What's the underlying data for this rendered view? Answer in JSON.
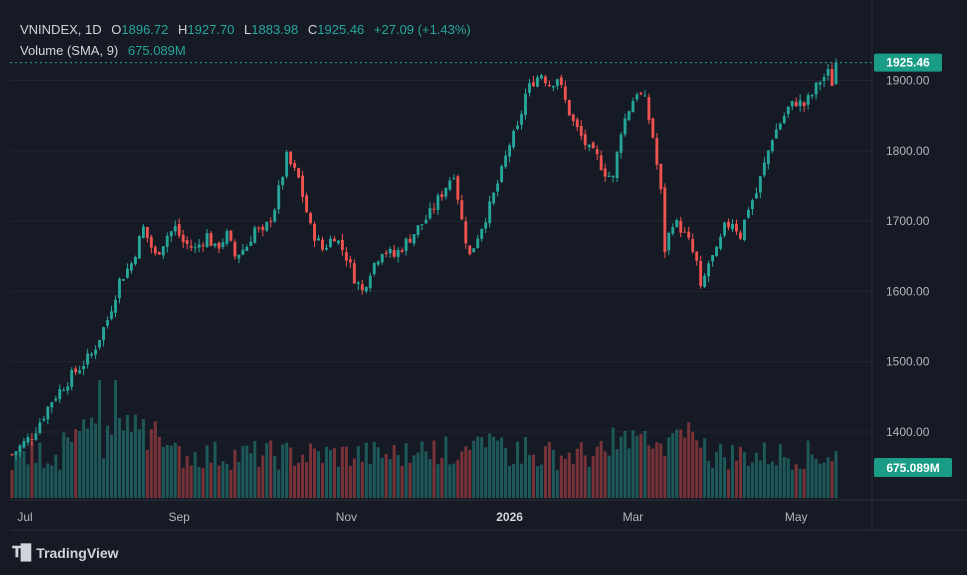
{
  "legend": {
    "symbol": "VNINDEX, 1D",
    "open_label": "O",
    "open": "1896.72",
    "high_label": "H",
    "high": "1927.70",
    "low_label": "L",
    "low": "1883.98",
    "close_label": "C",
    "close": "1925.46",
    "change": "+27.09 (+1.43%)",
    "volume_label": "Volume (SMA, 9)",
    "volume_value": "675.089M"
  },
  "footer": {
    "brand": "TradingView"
  },
  "colors": {
    "background": "#161a25",
    "up": "#26a69a",
    "down": "#ef5350",
    "grid": "#232632",
    "text": "#b2b5be",
    "last_price_tag": "#1a9c86"
  },
  "chart_data": {
    "type": "candlestick",
    "symbol": "VNINDEX",
    "interval": "1D",
    "y_ticks": [
      "1400.00",
      "1500.00",
      "1600.00",
      "1700.00",
      "1800.00",
      "1900.00"
    ],
    "x_ticks": [
      "Jul",
      "Sep",
      "Nov",
      "2026",
      "Mar",
      "May"
    ],
    "last_price_label": "1925.46",
    "last_volume_label": "675.089M",
    "ylim": [
      1355,
      1950
    ],
    "anchors": [
      [
        0,
        1368
      ],
      [
        5,
        1395
      ],
      [
        10,
        1445
      ],
      [
        15,
        1480
      ],
      [
        20,
        1510
      ],
      [
        24,
        1560
      ],
      [
        27,
        1615
      ],
      [
        30,
        1640
      ],
      [
        33,
        1690
      ],
      [
        36,
        1650
      ],
      [
        39,
        1680
      ],
      [
        41,
        1690
      ],
      [
        43,
        1670
      ],
      [
        46,
        1660
      ],
      [
        49,
        1680
      ],
      [
        51,
        1660
      ],
      [
        54,
        1680
      ],
      [
        56,
        1650
      ],
      [
        59,
        1665
      ],
      [
        61,
        1690
      ],
      [
        63,
        1680
      ],
      [
        66,
        1720
      ],
      [
        69,
        1790
      ],
      [
        72,
        1760
      ],
      [
        75,
        1690
      ],
      [
        78,
        1660
      ],
      [
        81,
        1680
      ],
      [
        84,
        1650
      ],
      [
        86,
        1620
      ],
      [
        88,
        1600
      ],
      [
        90,
        1630
      ],
      [
        93,
        1660
      ],
      [
        96,
        1650
      ],
      [
        99,
        1670
      ],
      [
        102,
        1690
      ],
      [
        105,
        1710
      ],
      [
        108,
        1740
      ],
      [
        111,
        1770
      ],
      [
        113,
        1700
      ],
      [
        115,
        1650
      ],
      [
        117,
        1680
      ],
      [
        120,
        1720
      ],
      [
        123,
        1770
      ],
      [
        125,
        1810
      ],
      [
        127,
        1830
      ],
      [
        129,
        1880
      ],
      [
        131,
        1900
      ],
      [
        133,
        1910
      ],
      [
        135,
        1895
      ],
      [
        137,
        1905
      ],
      [
        139,
        1870
      ],
      [
        141,
        1840
      ],
      [
        143,
        1820
      ],
      [
        145,
        1800
      ],
      [
        147,
        1790
      ],
      [
        149,
        1770
      ],
      [
        151,
        1760
      ],
      [
        153,
        1830
      ],
      [
        155,
        1860
      ],
      [
        157,
        1885
      ],
      [
        159,
        1870
      ],
      [
        161,
        1820
      ],
      [
        163,
        1740
      ],
      [
        164,
        1660
      ],
      [
        166,
        1700
      ],
      [
        168,
        1690
      ],
      [
        170,
        1670
      ],
      [
        172,
        1640
      ],
      [
        173,
        1600
      ],
      [
        175,
        1640
      ],
      [
        177,
        1655
      ],
      [
        179,
        1690
      ],
      [
        181,
        1700
      ],
      [
        183,
        1680
      ],
      [
        185,
        1720
      ],
      [
        187,
        1740
      ],
      [
        189,
        1780
      ],
      [
        191,
        1820
      ],
      [
        193,
        1840
      ],
      [
        195,
        1860
      ],
      [
        197,
        1870
      ],
      [
        199,
        1865
      ],
      [
        201,
        1880
      ],
      [
        203,
        1900
      ],
      [
        205,
        1910
      ],
      [
        206,
        1897
      ],
      [
        207,
        1925
      ]
    ]
  }
}
